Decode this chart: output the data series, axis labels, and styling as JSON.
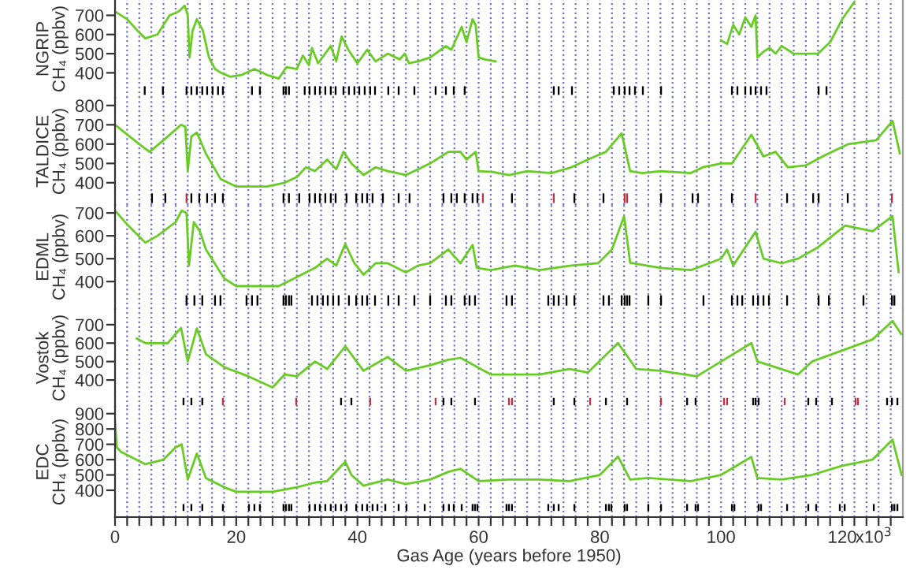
{
  "chart_data": [
    {
      "type": "line",
      "ylabel": "NGRIP\nCH₄ (ppbv)",
      "xlim": [
        0,
        130
      ],
      "ylim": [
        270,
        780
      ],
      "yticks": [
        400,
        500,
        600,
        700
      ],
      "xticks": [
        0,
        2,
        4,
        6,
        8,
        10,
        12,
        14,
        16,
        18,
        20,
        22,
        24,
        26,
        28,
        30,
        32,
        34,
        36,
        38,
        40,
        42,
        44,
        46,
        48,
        50,
        52,
        54,
        56,
        58,
        60,
        62,
        64,
        66,
        68,
        70,
        72,
        74,
        76,
        78,
        80,
        82,
        84,
        86,
        88,
        90,
        92,
        94,
        96,
        98,
        100,
        102,
        104,
        106,
        108,
        110,
        112,
        114,
        116,
        118,
        120,
        122,
        124,
        126,
        128
      ],
      "grid": "x",
      "tick_labels": "y",
      "series": [
        {
          "color": "#66cc22",
          "x": [
            0,
            2,
            4,
            5,
            7,
            9,
            10.5,
            11.5,
            12.0,
            12.3,
            12.8,
            13.5,
            14.5,
            15.5,
            16.5,
            17.5,
            19,
            21,
            23,
            25,
            27,
            28.3,
            30,
            31,
            32,
            32.5,
            33.5,
            35.6,
            36.5,
            37.4,
            38.5,
            40,
            41.6,
            43,
            45,
            47,
            47.8,
            48.5,
            50,
            52,
            54.6,
            55.5,
            57.2,
            58,
            59,
            59.5,
            60,
            61,
            62.8,
            80,
            100,
            101,
            102,
            103,
            104,
            105,
            105.7,
            106,
            107,
            108,
            109,
            110,
            111,
            112,
            116,
            118,
            120,
            122
          ],
          "values": [
            720,
            680,
            610,
            580,
            600,
            700,
            720,
            750,
            700,
            480,
            620,
            680,
            620,
            480,
            420,
            400,
            380,
            390,
            420,
            390,
            370,
            430,
            420,
            490,
            440,
            530,
            450,
            540,
            460,
            590,
            520,
            450,
            520,
            460,
            500,
            470,
            500,
            450,
            460,
            480,
            540,
            520,
            640,
            560,
            680,
            650,
            480,
            470,
            460,
            null,
            570,
            550,
            650,
            600,
            690,
            640,
            700,
            480,
            510,
            530,
            500,
            540,
            520,
            500,
            500,
            560,
            680,
            770
          ]
        },
        {
          "type": "bar",
          "base": [
            285,
            285,
            285,
            285,
            285,
            285,
            285,
            285,
            285,
            285,
            285,
            285,
            285,
            285,
            285,
            285,
            285,
            285,
            285,
            285,
            285,
            285,
            285,
            285,
            285,
            285,
            285,
            285,
            285,
            285,
            285,
            285,
            285,
            285,
            285,
            285,
            285,
            285,
            285,
            285,
            285,
            285,
            285,
            285,
            285,
            285,
            285,
            285,
            285,
            285,
            285,
            285,
            285,
            285,
            285
          ],
          "x": [
            4.9,
            7.9,
            11.8,
            12.6,
            13.5,
            14.4,
            15.2,
            16.1,
            17.0,
            17.8,
            22.6,
            23.9,
            27.8,
            28.2,
            28.7,
            31.3,
            32.1,
            33.0,
            33.8,
            34.7,
            35.6,
            36.4,
            37.7,
            38.6,
            39.5,
            40.3,
            41.2,
            42.1,
            42.9,
            45.1,
            46.8,
            49.4,
            52.9,
            54.6,
            55.9,
            57.7,
            72.4,
            73.2,
            75.4,
            82.3,
            83.2,
            84.1,
            84.9,
            85.8,
            87.1,
            90.1,
            101.8,
            102.7,
            104,
            104.9,
            105.7,
            106.6,
            107.5,
            116.1,
            117.4
          ],
          "values": [
            45,
            45,
            45,
            45,
            45,
            45,
            45,
            45,
            45,
            45,
            45,
            45,
            45,
            45,
            45,
            45,
            45,
            45,
            45,
            45,
            45,
            45,
            45,
            45,
            45,
            45,
            45,
            45,
            45,
            45,
            45,
            45,
            45,
            45,
            45,
            45,
            45,
            45,
            45,
            45,
            45,
            45,
            45,
            45,
            45,
            45,
            45,
            45,
            45,
            45,
            45,
            45,
            45,
            45,
            45
          ],
          "color": "#000000"
        }
      ]
    },
    {
      "type": "line",
      "ylabel": "TALDICE\nCH₄ (ppbv)",
      "xlim": [
        0,
        130
      ],
      "ylim": [
        285,
        840
      ],
      "yticks": [
        400,
        500,
        600,
        700,
        800
      ],
      "xticks": [
        0,
        2,
        4,
        6,
        8,
        10,
        12,
        14,
        16,
        18,
        20,
        22,
        24,
        26,
        28,
        30,
        32,
        34,
        36,
        38,
        40,
        42,
        44,
        46,
        48,
        50,
        52,
        54,
        56,
        58,
        60,
        62,
        64,
        66,
        68,
        70,
        72,
        74,
        76,
        78,
        80,
        82,
        84,
        86,
        88,
        90,
        92,
        94,
        96,
        98,
        100,
        102,
        104,
        106,
        108,
        110,
        112,
        114,
        116,
        118,
        120,
        122,
        124,
        126,
        128
      ],
      "grid": "x",
      "tick_labels": "y",
      "series": [
        {
          "color": "#66cc22",
          "x": [
            0,
            2,
            4,
            5.7,
            8,
            10.9,
            11.6,
            12,
            12.6,
            13.5,
            15,
            17.4,
            20,
            25,
            28,
            30,
            31.5,
            33,
            35,
            36.5,
            37.7,
            39,
            41,
            43,
            45,
            48,
            50,
            52,
            55,
            57,
            58,
            59.5,
            60,
            62.3,
            65,
            68,
            72,
            75.3,
            78,
            81,
            83.6,
            85,
            87,
            90,
            95,
            97,
            100,
            101.8,
            105,
            107,
            109,
            111,
            114,
            117,
            121,
            125.6,
            128.3,
            129.5
          ],
          "values": [
            700,
            650,
            600,
            560,
            620,
            700,
            690,
            460,
            640,
            660,
            550,
            420,
            380,
            380,
            400,
            430,
            480,
            460,
            520,
            470,
            560,
            500,
            440,
            480,
            460,
            440,
            470,
            500,
            560,
            560,
            520,
            560,
            460,
            456,
            440,
            460,
            450,
            480,
            520,
            560,
            656,
            460,
            450,
            460,
            450,
            480,
            500,
            500,
            648,
            536,
            560,
            480,
            490,
            540,
            600,
            620,
            720,
            552
          ]
        },
        {
          "type": "bar",
          "base": [
            295,
            295,
            295,
            295,
            295,
            295,
            295,
            295,
            295,
            295,
            295,
            295,
            295,
            295,
            295,
            295,
            295,
            295,
            295,
            295,
            295,
            295,
            295,
            295,
            295,
            295,
            295,
            295,
            295,
            295,
            295,
            295,
            295,
            295,
            295,
            295,
            295,
            295,
            295,
            295,
            295,
            295,
            295,
            295,
            295,
            295,
            295,
            295
          ],
          "x": [
            6.1,
            8.3,
            11.8,
            12.6,
            13.9,
            15.2,
            16.5,
            17.8,
            27.8,
            28.7,
            30.4,
            32.1,
            33.0,
            33.8,
            34.7,
            35.6,
            36.4,
            38.2,
            39.8,
            40.8,
            41.6,
            42.5,
            44.2,
            46.8,
            48.6,
            54.2,
            55.5,
            56.4,
            57.7,
            59.0,
            59.8,
            60.7,
            65.5,
            72.4,
            75.8,
            80.6,
            84.1,
            84.5,
            90.1,
            95.3,
            96.2,
            101.8,
            105.7,
            110.9,
            115.2,
            116.1,
            120.9,
            128.2
          ],
          "values": [
            50,
            50,
            50,
            50,
            50,
            50,
            50,
            50,
            50,
            50,
            50,
            50,
            50,
            50,
            50,
            50,
            50,
            50,
            50,
            50,
            50,
            50,
            50,
            50,
            50,
            50,
            50,
            50,
            50,
            50,
            50,
            50,
            50,
            50,
            50,
            50,
            50,
            50,
            50,
            50,
            50,
            50,
            50,
            50,
            50,
            50,
            50,
            50
          ],
          "colors": [
            "#000000",
            "#000000",
            "#c03040",
            "#000000",
            "#000000",
            "#000000",
            "#000000",
            "#000000",
            "#000000",
            "#000000",
            "#000000",
            "#000000",
            "#000000",
            "#000000",
            "#000000",
            "#000000",
            "#000000",
            "#000000",
            "#000000",
            "#000000",
            "#000000",
            "#000000",
            "#000000",
            "#000000",
            "#000000",
            "#000000",
            "#000000",
            "#000000",
            "#000000",
            "#000000",
            "#000000",
            "#c03040",
            "#000000",
            "#c03040",
            "#000000",
            "#000000",
            "#c03040",
            "#c03040",
            "#000000",
            "#000000",
            "#000000",
            "#000000",
            "#c03040",
            "#000000",
            "#000000",
            "#000000",
            "#000000",
            "#c03040"
          ]
        }
      ]
    },
    {
      "type": "line",
      "ylabel": "EDML\nCH₄ (ppbv)",
      "xlim": [
        0,
        130
      ],
      "ylim": [
        280,
        735
      ],
      "yticks": [
        400,
        500,
        600,
        700
      ],
      "xticks": [
        0,
        2,
        4,
        6,
        8,
        10,
        12,
        14,
        16,
        18,
        20,
        22,
        24,
        26,
        28,
        30,
        32,
        34,
        36,
        38,
        40,
        42,
        44,
        46,
        48,
        50,
        52,
        54,
        56,
        58,
        60,
        62,
        64,
        66,
        68,
        70,
        72,
        74,
        76,
        78,
        80,
        82,
        84,
        86,
        88,
        90,
        92,
        94,
        96,
        98,
        100,
        102,
        104,
        106,
        108,
        110,
        112,
        114,
        116,
        118,
        120,
        122,
        124,
        126,
        128
      ],
      "grid": "x",
      "tick_labels": "y",
      "series": [
        {
          "color": "#66cc22",
          "x": [
            0,
            2,
            5,
            7,
            10,
            11,
            11.8,
            12.2,
            13,
            14,
            15,
            18,
            20,
            24,
            27,
            30,
            33,
            35,
            36.5,
            38,
            39.5,
            41,
            43,
            45,
            48,
            50,
            52,
            55,
            57,
            59,
            59.7,
            62,
            66,
            70,
            75.3,
            79.7,
            82,
            84,
            85,
            90,
            95,
            100,
            101,
            102,
            105.7,
            107,
            110,
            112.7,
            116,
            120.5,
            125,
            128.3,
            129.3
          ],
          "values": [
            710,
            650,
            570,
            600,
            660,
            710,
            700,
            470,
            660,
            620,
            540,
            414,
            380,
            380,
            380,
            420,
            460,
            500,
            470,
            564,
            480,
            430,
            480,
            480,
            440,
            470,
            480,
            540,
            480,
            560,
            460,
            450,
            470,
            450,
            470,
            480,
            540,
            686,
            482,
            460,
            450,
            500,
            540,
            470,
            618,
            500,
            480,
            500,
            550,
            645,
            620,
            686,
            441
          ]
        },
        {
          "type": "bar",
          "base": [
            295,
            295,
            295,
            295,
            295,
            295,
            295,
            295,
            295,
            295,
            295,
            295,
            295,
            295,
            295,
            295,
            295,
            295,
            295,
            295,
            295,
            295,
            295,
            295,
            295,
            295,
            295,
            295,
            295,
            295,
            295,
            295,
            295,
            295,
            295,
            295,
            295,
            295,
            295,
            295,
            295,
            295,
            295,
            295,
            295,
            295,
            295,
            295,
            295,
            295,
            295,
            295,
            295,
            295,
            295,
            295,
            295,
            295,
            295,
            295,
            295
          ],
          "x": [
            11.8,
            13.1,
            14.4,
            16.5,
            17.4,
            21.7,
            22.6,
            23.5,
            27.8,
            28.2,
            28.7,
            29.1,
            32.5,
            33.4,
            34.3,
            35.1,
            36.0,
            36.9,
            38.6,
            39.8,
            40.8,
            41.6,
            42.9,
            45.1,
            46.8,
            49.4,
            52.0,
            54.6,
            55.5,
            57.7,
            58.5,
            59.4,
            64.6,
            65.5,
            71.5,
            72.4,
            73.2,
            74.5,
            75.8,
            80.6,
            81.5,
            83.6,
            84.1,
            84.5,
            84.9,
            88.0,
            90.1,
            97.1,
            101.8,
            102.7,
            103.5,
            105.3,
            106.1,
            107.0,
            107.9,
            110.9,
            116.1,
            117.8,
            123.5,
            128.2,
            128.6
          ],
          "values": [
            45,
            45,
            45,
            45,
            45,
            45,
            45,
            45,
            45,
            45,
            45,
            45,
            45,
            45,
            45,
            45,
            45,
            45,
            45,
            45,
            45,
            45,
            45,
            45,
            45,
            45,
            45,
            45,
            45,
            45,
            45,
            45,
            45,
            45,
            45,
            45,
            45,
            45,
            45,
            45,
            45,
            45,
            45,
            45,
            45,
            45,
            45,
            45,
            45,
            45,
            45,
            45,
            45,
            45,
            45,
            45,
            45,
            45,
            45,
            45,
            45
          ],
          "color": "#000000"
        }
      ]
    },
    {
      "type": "line",
      "ylabel": "Vostok\nCH₄ (ppbv)",
      "xlim": [
        0,
        130
      ],
      "ylim": [
        255,
        785
      ],
      "yticks": [
        400,
        500,
        600,
        700
      ],
      "xticks": [
        0,
        2,
        4,
        6,
        8,
        10,
        12,
        14,
        16,
        18,
        20,
        22,
        24,
        26,
        28,
        30,
        32,
        34,
        36,
        38,
        40,
        42,
        44,
        46,
        48,
        50,
        52,
        54,
        56,
        58,
        60,
        62,
        64,
        66,
        68,
        70,
        72,
        74,
        76,
        78,
        80,
        82,
        84,
        86,
        88,
        90,
        92,
        94,
        96,
        98,
        100,
        102,
        104,
        106,
        108,
        110,
        112,
        114,
        116,
        118,
        120,
        122,
        124,
        126,
        128
      ],
      "grid": "x",
      "tick_labels": "y",
      "series": [
        {
          "color": "#66cc22",
          "x": [
            3.6,
            5,
            8.7,
            10.9,
            12,
            13.5,
            15,
            18,
            22,
            26,
            28,
            30,
            33,
            35,
            38,
            41,
            45,
            48,
            52,
            55,
            57,
            62,
            70,
            75,
            78,
            83,
            86,
            90,
            96,
            100,
            105,
            106,
            108,
            112.7,
            115,
            120,
            125,
            128.3,
            129.7
          ],
          "values": [
            625,
            600,
            600,
            683,
            500,
            680,
            540,
            470,
            420,
            360,
            430,
            420,
            500,
            460,
            583,
            450,
            525,
            450,
            480,
            510,
            520,
            430,
            430,
            460,
            440,
            600,
            460,
            450,
            420,
            500,
            600,
            500,
            480,
            430,
            500,
            560,
            620,
            720,
            650
          ]
        },
        {
          "type": "bar",
          "base": [
            263,
            263,
            263,
            263,
            263,
            263,
            263,
            263,
            263,
            263,
            263,
            263,
            263,
            263,
            263,
            263,
            263,
            263,
            263,
            263,
            263,
            263,
            263,
            263,
            263,
            263,
            263,
            263,
            263,
            263,
            263,
            263,
            263,
            263,
            263,
            263
          ],
          "x": [
            11.3,
            12.6,
            14.4,
            17.8,
            29.9,
            37.3,
            39.0,
            42.1,
            52.9,
            54.2,
            55.5,
            59.4,
            65.0,
            65.5,
            72.4,
            75.8,
            78.4,
            81.0,
            84.5,
            90.1,
            94.4,
            95.8,
            100.5,
            101.0,
            105.3,
            105.7,
            106.2,
            110.5,
            114.4,
            115.7,
            118.3,
            122.2,
            122.6,
            127.4,
            128.2,
            129.1
          ],
          "values": [
            40,
            40,
            40,
            40,
            40,
            40,
            40,
            40,
            40,
            40,
            40,
            40,
            40,
            40,
            40,
            40,
            40,
            40,
            40,
            40,
            40,
            40,
            40,
            40,
            40,
            40,
            40,
            40,
            40,
            40,
            40,
            40,
            40,
            40,
            40,
            40
          ],
          "colors": [
            "#000000",
            "#000000",
            "#000000",
            "#c03040",
            "#c03040",
            "#000000",
            "#000000",
            "#c03040",
            "#c03040",
            "#000000",
            "#000000",
            "#000000",
            "#c03040",
            "#c03040",
            "#000000",
            "#000000",
            "#c03040",
            "#000000",
            "#000000",
            "#c03040",
            "#000000",
            "#000000",
            "#c03040",
            "#c03040",
            "#000000",
            "#000000",
            "#000000",
            "#c03040",
            "#000000",
            "#000000",
            "#000000",
            "#c03040",
            "#c03040",
            "#000000",
            "#000000",
            "#000000"
          ]
        }
      ]
    },
    {
      "type": "line",
      "ylabel": "EDC\nCH₄ (ppbv)",
      "xlabel": "Gas Age (years before 1950)",
      "annotations": [
        "x10$^{3}$"
      ],
      "xlim": [
        0,
        130
      ],
      "ylim": [
        225,
        945
      ],
      "yticks": [
        400,
        500,
        600,
        700,
        800,
        900
      ],
      "xticks": [
        0,
        {
          "value": 2,
          "label": null
        },
        {
          "value": 4,
          "label": null
        },
        {
          "value": 6,
          "label": null
        },
        {
          "value": 8,
          "label": null
        },
        {
          "value": 10,
          "label": null
        },
        {
          "value": 12,
          "label": null
        },
        {
          "value": 14,
          "label": null
        },
        {
          "value": 16,
          "label": null
        },
        {
          "value": 18,
          "label": null
        },
        20,
        {
          "value": 22,
          "label": null
        },
        {
          "value": 24,
          "label": null
        },
        {
          "value": 26,
          "label": null
        },
        {
          "value": 28,
          "label": null
        },
        {
          "value": 30,
          "label": null
        },
        {
          "value": 32,
          "label": null
        },
        {
          "value": 34,
          "label": null
        },
        {
          "value": 36,
          "label": null
        },
        {
          "value": 38,
          "label": null
        },
        40,
        {
          "value": 42,
          "label": null
        },
        {
          "value": 44,
          "label": null
        },
        {
          "value": 46,
          "label": null
        },
        {
          "value": 48,
          "label": null
        },
        {
          "value": 50,
          "label": null
        },
        {
          "value": 52,
          "label": null
        },
        {
          "value": 54,
          "label": null
        },
        {
          "value": 56,
          "label": null
        },
        {
          "value": 58,
          "label": null
        },
        60,
        {
          "value": 62,
          "label": null
        },
        {
          "value": 64,
          "label": null
        },
        {
          "value": 66,
          "label": null
        },
        {
          "value": 68,
          "label": null
        },
        {
          "value": 70,
          "label": null
        },
        {
          "value": 72,
          "label": null
        },
        {
          "value": 74,
          "label": null
        },
        {
          "value": 76,
          "label": null
        },
        {
          "value": 78,
          "label": null
        },
        80,
        {
          "value": 82,
          "label": null
        },
        {
          "value": 84,
          "label": null
        },
        {
          "value": 86,
          "label": null
        },
        {
          "value": 88,
          "label": null
        },
        {
          "value": 90,
          "label": null
        },
        {
          "value": 92,
          "label": null
        },
        {
          "value": 94,
          "label": null
        },
        {
          "value": 96,
          "label": null
        },
        {
          "value": 98,
          "label": null
        },
        100,
        {
          "value": 102,
          "label": null
        },
        {
          "value": 104,
          "label": null
        },
        {
          "value": 106,
          "label": null
        },
        {
          "value": 108,
          "label": null
        },
        {
          "value": 110,
          "label": null
        },
        {
          "value": 112,
          "label": null
        },
        {
          "value": 114,
          "label": null
        },
        {
          "value": 116,
          "label": null
        },
        {
          "value": 118,
          "label": null
        },
        120,
        {
          "value": 122,
          "label": null
        },
        {
          "value": 124,
          "label": null
        },
        {
          "value": 126,
          "label": null
        },
        {
          "value": 128,
          "label": null
        }
      ],
      "grid": "x",
      "series": [
        {
          "color": "#66cc22",
          "x": [
            0,
            0.3,
            1,
            5,
            8,
            10,
            11,
            12,
            13.5,
            15,
            18,
            20,
            26,
            30,
            33,
            35,
            38,
            39,
            41,
            45,
            48,
            52,
            55,
            57,
            60,
            65,
            70,
            75,
            80,
            83,
            85,
            88,
            95,
            100,
            105,
            106,
            110,
            115,
            120,
            125,
            128.3,
            129.8
          ],
          "values": [
            850,
            680,
            650,
            570,
            600,
            680,
            700,
            470,
            640,
            480,
            420,
            390,
            390,
            420,
            450,
            460,
            586,
            500,
            430,
            470,
            440,
            470,
            520,
            540,
            460,
            470,
            470,
            460,
            500,
            620,
            470,
            480,
            460,
            500,
            617,
            480,
            470,
            500,
            560,
            600,
            730,
            500
          ]
        },
        {
          "type": "bar",
          "base": [
            265,
            265,
            265,
            265,
            265,
            265,
            265,
            265,
            265,
            265,
            265,
            265,
            265,
            265,
            265,
            265,
            265,
            265,
            265,
            265,
            265,
            265,
            265,
            265,
            265,
            265,
            265,
            265,
            265,
            265,
            265,
            265,
            265,
            265,
            265,
            265,
            265,
            265,
            265,
            265,
            265,
            265,
            265,
            265,
            265,
            265,
            265,
            265,
            265,
            265,
            265,
            265,
            265,
            265,
            265,
            265,
            265,
            265,
            265,
            265,
            265,
            265,
            265,
            265,
            265
          ],
          "x": [
            11.3,
            12.6,
            14.4,
            17.8,
            22.1,
            23.0,
            23.9,
            27.8,
            28.2,
            28.7,
            29.1,
            32.1,
            33.0,
            33.8,
            34.7,
            35.6,
            36.4,
            37.3,
            38.2,
            39.8,
            40.8,
            41.6,
            42.5,
            43.3,
            44.6,
            46.8,
            48.1,
            51.1,
            54.2,
            55.1,
            55.9,
            57.2,
            59.0,
            59.4,
            59.8,
            64.6,
            65.0,
            65.5,
            71.5,
            72.4,
            73.2,
            75.8,
            81.0,
            81.5,
            81.9,
            84.1,
            84.5,
            88.0,
            90.1,
            94.4,
            95.8,
            96.2,
            101.8,
            102.2,
            106.2,
            106.6,
            110.9,
            114.4,
            115.7,
            119.6,
            120.4,
            125.2,
            128.2,
            128.6,
            129.1
          ],
          "values": [
            45,
            45,
            45,
            45,
            45,
            45,
            45,
            45,
            45,
            45,
            45,
            45,
            45,
            45,
            45,
            45,
            45,
            45,
            45,
            45,
            45,
            45,
            45,
            45,
            45,
            45,
            45,
            45,
            45,
            45,
            45,
            45,
            45,
            45,
            45,
            45,
            45,
            45,
            45,
            45,
            45,
            45,
            45,
            45,
            45,
            45,
            45,
            45,
            45,
            45,
            45,
            45,
            45,
            45,
            45,
            45,
            45,
            45,
            45,
            45,
            45,
            45,
            45,
            45,
            45
          ],
          "color": "#000000"
        }
      ]
    }
  ]
}
